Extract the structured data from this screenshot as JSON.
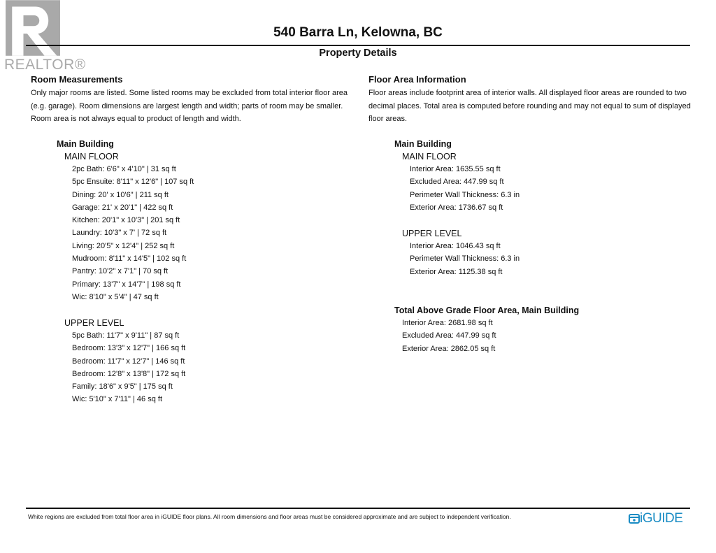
{
  "header": {
    "title": "540 Barra Ln, Kelowna, BC",
    "subtitle": "Property Details",
    "logo_text": "REALTOR®"
  },
  "rooms": {
    "heading": "Room Measurements",
    "note": "Only major rooms are listed. Some listed rooms may be excluded from total interior floor area (e.g. garage). Room dimensions are largest length and width; parts of room may be smaller. Room area is not always equal to product of length and width.",
    "building": "Main Building",
    "floors": [
      {
        "name": "MAIN FLOOR",
        "items": [
          "2pc Bath: 6'6\" x 4'10\" | 31 sq ft",
          "5pc Ensuite: 8'11\" x 12'6\" | 107 sq ft",
          "Dining: 20' x 10'6\" | 211 sq ft",
          "Garage: 21' x 20'1\" | 422 sq ft",
          "Kitchen: 20'1\" x 10'3\" | 201 sq ft",
          "Laundry: 10'3\" x 7' | 72 sq ft",
          "Living: 20'5\" x 12'4\" | 252 sq ft",
          "Mudroom: 8'11\" x 14'5\" | 102 sq ft",
          "Pantry: 10'2\" x 7'1\" | 70 sq ft",
          "Primary: 13'7\" x 14'7\" | 198 sq ft",
          "Wic: 8'10\" x 5'4\" | 47 sq ft"
        ]
      },
      {
        "name": "UPPER LEVEL",
        "items": [
          "5pc Bath: 11'7\" x 9'11\" | 87 sq ft",
          "Bedroom: 13'3\" x 12'7\" | 166 sq ft",
          "Bedroom: 11'7\" x 12'7\" | 146 sq ft",
          "Bedroom: 12'8\" x 13'8\" | 172 sq ft",
          "Family: 18'6\" x 9'5\" | 175 sq ft",
          "Wic: 5'10\" x 7'11\" | 46 sq ft"
        ]
      }
    ]
  },
  "areas": {
    "heading": "Floor Area Information",
    "note": "Floor areas include footprint area of interior walls. All displayed floor areas are rounded to two decimal places. Total area is computed before rounding and may not equal to sum of displayed floor areas.",
    "building": "Main Building",
    "floors": [
      {
        "name": "MAIN FLOOR",
        "items": [
          "Interior Area: 1635.55 sq ft",
          "Excluded Area: 447.99 sq ft",
          "Perimeter Wall Thickness: 6.3 in",
          "Exterior Area: 1736.67 sq ft"
        ]
      },
      {
        "name": "UPPER LEVEL",
        "items": [
          "Interior Area: 1046.43 sq ft",
          "Perimeter Wall Thickness: 6.3 in",
          "Exterior Area: 1125.38 sq ft"
        ]
      }
    ],
    "total_heading": "Total Above Grade Floor Area, Main Building",
    "total_items": [
      "Interior Area: 2681.98 sq ft",
      "Excluded Area: 447.99 sq ft",
      "Exterior Area: 2862.05 sq ft"
    ]
  },
  "footer": {
    "disclaimer": "White regions are excluded from total floor area in iGUIDE floor plans. All room dimensions and floor areas must be considered approximate and are subject to independent verification.",
    "brand": "iGUIDE",
    "brand_color": "#1a8cc4"
  }
}
